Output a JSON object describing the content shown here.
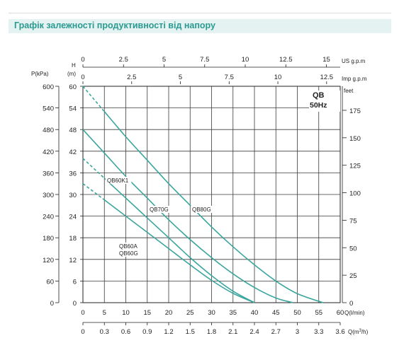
{
  "header": {
    "title": "Графік залежності продуктивності від напору"
  },
  "chart_data": {
    "type": "line",
    "box": {
      "model": "QB",
      "frequency": "50Hz"
    },
    "x_axis_q": {
      "label": "Q(l/min)",
      "ticks": [
        0,
        5,
        10,
        15,
        20,
        25,
        30,
        35,
        40,
        45,
        50,
        55,
        60
      ],
      "range": [
        0,
        60
      ]
    },
    "x_axis_m3h": {
      "label_text": "Q(m",
      "label_sup": "3",
      "label_end": "/h)",
      "ticks": [
        "0",
        "0.3",
        "0.6",
        "0.9",
        "1.2",
        "1.5",
        "1.8",
        "2.1",
        "2.4",
        "2.7",
        "3",
        "3.3",
        "3.6"
      ]
    },
    "x_axis_us": {
      "label": "US  g.p.m",
      "ticks": [
        "0",
        "2.5",
        "5",
        "7.5",
        "10",
        "12.5",
        "15"
      ],
      "values": [
        0,
        2.5,
        5,
        7.5,
        10,
        12.5,
        15
      ]
    },
    "x_axis_imp": {
      "label": "Imp  g.p.m",
      "ticks": [
        "0",
        "2.5",
        "5",
        "7.5",
        "10",
        "12.5"
      ],
      "values": [
        0,
        2.5,
        5,
        7.5,
        10,
        12.5
      ]
    },
    "y_axis_m": {
      "label_h": "H",
      "label_unit": "(m)",
      "ticks": [
        0,
        6,
        12,
        18,
        24,
        30,
        36,
        42,
        48,
        54,
        60
      ],
      "range": [
        0,
        60
      ]
    },
    "y_axis_kpa": {
      "label": "P(kPa)",
      "ticks": [
        0,
        60,
        120,
        180,
        240,
        300,
        360,
        420,
        480,
        540,
        600
      ]
    },
    "y_axis_feet": {
      "label": "feet",
      "ticks": [
        0,
        25,
        50,
        75,
        100,
        125,
        150,
        175
      ]
    },
    "grid": true,
    "series": [
      {
        "name": "QB60A QB60G",
        "label_line1": "QB60A",
        "label_line2": "QB60G",
        "dashed_until": 5,
        "points": [
          [
            0,
            33
          ],
          [
            5,
            28.5
          ],
          [
            10,
            24
          ],
          [
            15,
            19.5
          ],
          [
            20,
            15
          ],
          [
            25,
            10.5
          ],
          [
            30,
            6.2
          ],
          [
            35,
            2.6
          ],
          [
            40,
            0
          ]
        ]
      },
      {
        "name": "QB60K1",
        "label_line1": "QB60K1",
        "dashed_until": 5,
        "points": [
          [
            0,
            40
          ],
          [
            5,
            34.5
          ],
          [
            10,
            29
          ],
          [
            15,
            23.5
          ],
          [
            20,
            18
          ],
          [
            25,
            12.5
          ],
          [
            30,
            7.5
          ],
          [
            35,
            3.2
          ],
          [
            40,
            0
          ]
        ]
      },
      {
        "name": "QB70G",
        "label_line1": "QB70G",
        "dashed_until": 0,
        "points": [
          [
            0,
            48
          ],
          [
            5,
            41.5
          ],
          [
            10,
            35
          ],
          [
            15,
            29
          ],
          [
            20,
            23
          ],
          [
            25,
            17.5
          ],
          [
            30,
            12.5
          ],
          [
            35,
            8
          ],
          [
            40,
            4.2
          ],
          [
            45,
            1.3
          ],
          [
            49,
            0
          ]
        ]
      },
      {
        "name": "QB80G",
        "label_line1": "QB80G",
        "dashed_until": 5,
        "points": [
          [
            0,
            60
          ],
          [
            5,
            53
          ],
          [
            10,
            46
          ],
          [
            15,
            39.5
          ],
          [
            20,
            33
          ],
          [
            25,
            27
          ],
          [
            30,
            21
          ],
          [
            35,
            15.5
          ],
          [
            40,
            10.5
          ],
          [
            45,
            6
          ],
          [
            50,
            2.5
          ],
          [
            56,
            0
          ]
        ]
      }
    ],
    "colors": {
      "line": "#3aa69e",
      "grid": "#3a3a3a",
      "axis": "#222222"
    }
  }
}
